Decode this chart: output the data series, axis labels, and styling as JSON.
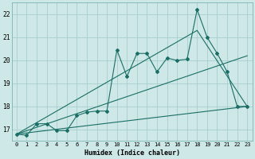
{
  "xlabel": "Humidex (Indice chaleur)",
  "xlim": [
    -0.5,
    23.5
  ],
  "ylim": [
    16.5,
    22.5
  ],
  "yticks": [
    17,
    18,
    19,
    20,
    21,
    22
  ],
  "xticks": [
    0,
    1,
    2,
    3,
    4,
    5,
    6,
    7,
    8,
    9,
    10,
    11,
    12,
    13,
    14,
    15,
    16,
    17,
    18,
    19,
    20,
    21,
    22,
    23
  ],
  "background_color": "#cde8e6",
  "grid_color": "#a8cece",
  "line_color": "#1a6e65",
  "line1_x": [
    0,
    1,
    2,
    3,
    4,
    5,
    6,
    7,
    8,
    9,
    10,
    11,
    12,
    13,
    14,
    15,
    16,
    17,
    18,
    19,
    20,
    21,
    22,
    23
  ],
  "line1_y": [
    16.8,
    16.75,
    17.25,
    17.25,
    16.95,
    16.95,
    17.6,
    17.75,
    17.8,
    17.8,
    20.45,
    19.3,
    20.3,
    20.3,
    19.5,
    20.1,
    20.0,
    20.05,
    22.2,
    21.0,
    20.3,
    19.5,
    18.0,
    18.0
  ],
  "line2_x": [
    0,
    23
  ],
  "line2_y": [
    16.8,
    18.0
  ],
  "line3_x": [
    0,
    23
  ],
  "line3_y": [
    16.8,
    20.2
  ],
  "line4_x": [
    0,
    18,
    23
  ],
  "line4_y": [
    16.8,
    21.3,
    18.0
  ]
}
